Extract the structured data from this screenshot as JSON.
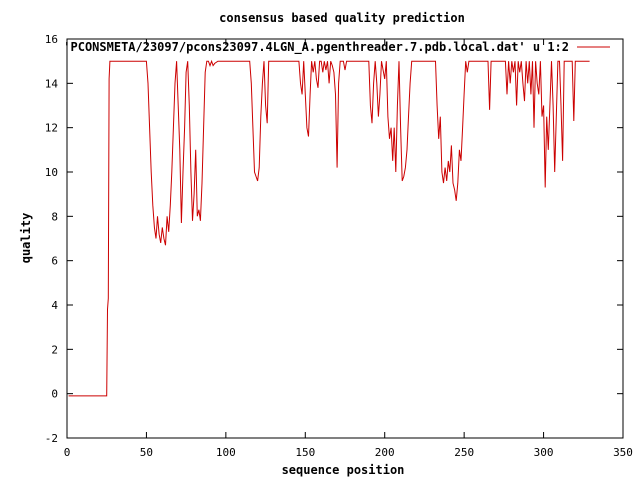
{
  "chart_data": {
    "type": "line",
    "title": "consensus based quality prediction",
    "xlabel": "sequence position",
    "ylabel": "quality",
    "xlim": [
      0,
      350
    ],
    "ylim": [
      -2,
      16
    ],
    "xticks": [
      0,
      50,
      100,
      150,
      200,
      250,
      300,
      350
    ],
    "yticks": [
      -2,
      0,
      2,
      4,
      6,
      8,
      10,
      12,
      14,
      16
    ],
    "grid": false,
    "legend_position": "top-right",
    "series": [
      {
        "name": "'PCONSMETA/23097/pcons23097.4LGN_A.pgenthreader.7.pdb.local.dat' u 1:2",
        "color": "#cc0000",
        "points": [
          [
            1,
            -0.1
          ],
          [
            10,
            -0.1
          ],
          [
            20,
            -0.1
          ],
          [
            25,
            -0.1
          ],
          [
            25.5,
            3.8
          ],
          [
            26,
            4.3
          ],
          [
            26.5,
            14.2
          ],
          [
            27,
            15
          ],
          [
            40,
            15
          ],
          [
            50,
            15
          ],
          [
            51,
            14
          ],
          [
            52,
            12
          ],
          [
            53,
            10
          ],
          [
            54,
            8.5
          ],
          [
            55,
            7.5
          ],
          [
            56,
            7
          ],
          [
            57,
            8
          ],
          [
            58,
            7.2
          ],
          [
            59,
            6.8
          ],
          [
            60,
            7.5
          ],
          [
            61,
            7
          ],
          [
            62,
            6.7
          ],
          [
            63,
            8
          ],
          [
            64,
            7.3
          ],
          [
            65,
            8.5
          ],
          [
            66,
            10
          ],
          [
            67,
            12
          ],
          [
            68,
            14
          ],
          [
            69,
            15
          ],
          [
            70,
            13
          ],
          [
            71,
            11
          ],
          [
            72,
            7.7
          ],
          [
            73,
            10
          ],
          [
            74,
            12
          ],
          [
            75,
            14.5
          ],
          [
            76,
            15
          ],
          [
            77,
            13
          ],
          [
            78,
            10
          ],
          [
            79,
            7.8
          ],
          [
            80,
            9
          ],
          [
            81,
            11
          ],
          [
            82,
            8
          ],
          [
            83,
            8.3
          ],
          [
            84,
            7.8
          ],
          [
            85,
            9.5
          ],
          [
            86,
            12
          ],
          [
            87,
            14.5
          ],
          [
            88,
            15
          ],
          [
            89,
            15
          ],
          [
            90,
            14.8
          ],
          [
            91,
            15
          ],
          [
            92,
            14.8
          ],
          [
            93,
            14.9
          ],
          [
            95,
            15
          ],
          [
            100,
            15
          ],
          [
            110,
            15
          ],
          [
            115,
            15
          ],
          [
            116,
            14
          ],
          [
            117,
            12
          ],
          [
            118,
            10
          ],
          [
            119,
            9.8
          ],
          [
            120,
            9.6
          ],
          [
            121,
            10.2
          ],
          [
            122,
            12.5
          ],
          [
            123,
            14
          ],
          [
            124,
            15
          ],
          [
            125,
            13
          ],
          [
            126,
            12.2
          ],
          [
            127,
            15
          ],
          [
            135,
            15
          ],
          [
            140,
            15
          ],
          [
            146,
            15
          ],
          [
            147,
            14
          ],
          [
            148,
            13.5
          ],
          [
            149,
            15
          ],
          [
            150,
            13.5
          ],
          [
            151,
            12
          ],
          [
            152,
            11.6
          ],
          [
            153,
            13.5
          ],
          [
            154,
            15
          ],
          [
            155,
            14.5
          ],
          [
            156,
            15
          ],
          [
            157,
            14.2
          ],
          [
            158,
            13.8
          ],
          [
            159,
            15
          ],
          [
            160,
            15
          ],
          [
            161,
            14.5
          ],
          [
            162,
            15
          ],
          [
            163,
            14.6
          ],
          [
            164,
            15
          ],
          [
            165,
            14
          ],
          [
            166,
            15
          ],
          [
            167,
            14.8
          ],
          [
            168,
            14.5
          ],
          [
            169,
            13.5
          ],
          [
            170,
            10.2
          ],
          [
            171,
            14
          ],
          [
            172,
            15
          ],
          [
            174,
            15
          ],
          [
            175,
            14.6
          ],
          [
            176,
            15
          ],
          [
            190,
            15
          ],
          [
            191,
            13
          ],
          [
            192,
            12.2
          ],
          [
            193,
            14
          ],
          [
            194,
            15
          ],
          [
            195,
            14
          ],
          [
            196,
            12.5
          ],
          [
            197,
            13.5
          ],
          [
            198,
            15
          ],
          [
            200,
            14.2
          ],
          [
            201,
            15
          ],
          [
            202,
            12.5
          ],
          [
            203,
            11.5
          ],
          [
            204,
            12
          ],
          [
            205,
            10.5
          ],
          [
            206,
            12
          ],
          [
            207,
            10
          ],
          [
            208,
            13
          ],
          [
            209,
            15
          ],
          [
            210,
            12
          ],
          [
            211,
            9.6
          ],
          [
            212,
            9.8
          ],
          [
            213,
            10.2
          ],
          [
            214,
            11
          ],
          [
            215,
            12.5
          ],
          [
            216,
            14
          ],
          [
            217,
            15
          ],
          [
            220,
            15
          ],
          [
            230,
            15
          ],
          [
            232,
            15
          ],
          [
            233,
            13
          ],
          [
            234,
            11.5
          ],
          [
            235,
            12.5
          ],
          [
            236,
            10
          ],
          [
            237,
            9.5
          ],
          [
            238,
            10.2
          ],
          [
            239,
            9.6
          ],
          [
            240,
            10.5
          ],
          [
            241,
            10
          ],
          [
            242,
            11.2
          ],
          [
            243,
            9.5
          ],
          [
            244,
            9.2
          ],
          [
            245,
            8.7
          ],
          [
            246,
            9.5
          ],
          [
            247,
            11
          ],
          [
            248,
            10.5
          ],
          [
            249,
            12
          ],
          [
            250,
            13.5
          ],
          [
            251,
            15
          ],
          [
            252,
            14.5
          ],
          [
            253,
            15
          ],
          [
            265,
            15
          ],
          [
            266,
            12.8
          ],
          [
            267,
            15
          ],
          [
            276,
            15
          ],
          [
            277,
            13.5
          ],
          [
            278,
            15
          ],
          [
            279,
            14
          ],
          [
            280,
            15
          ],
          [
            281,
            14.5
          ],
          [
            282,
            15
          ],
          [
            283,
            13
          ],
          [
            284,
            15
          ],
          [
            285,
            14.5
          ],
          [
            286,
            15
          ],
          [
            287,
            14
          ],
          [
            288,
            13.2
          ],
          [
            289,
            15
          ],
          [
            290,
            14
          ],
          [
            291,
            15
          ],
          [
            292,
            13.5
          ],
          [
            293,
            15
          ],
          [
            294,
            12
          ],
          [
            295,
            15
          ],
          [
            296,
            14
          ],
          [
            297,
            13.5
          ],
          [
            298,
            15
          ],
          [
            299,
            12.5
          ],
          [
            300,
            13
          ],
          [
            301,
            9.3
          ],
          [
            302,
            12.5
          ],
          [
            303,
            11
          ],
          [
            304,
            13
          ],
          [
            305,
            15
          ],
          [
            306,
            13
          ],
          [
            307,
            10
          ],
          [
            308,
            12.5
          ],
          [
            309,
            15
          ],
          [
            310,
            15
          ],
          [
            311,
            13
          ],
          [
            312,
            10.5
          ],
          [
            313,
            15
          ],
          [
            318,
            15
          ],
          [
            319,
            12.3
          ],
          [
            320,
            15
          ],
          [
            329,
            15
          ]
        ]
      }
    ]
  }
}
